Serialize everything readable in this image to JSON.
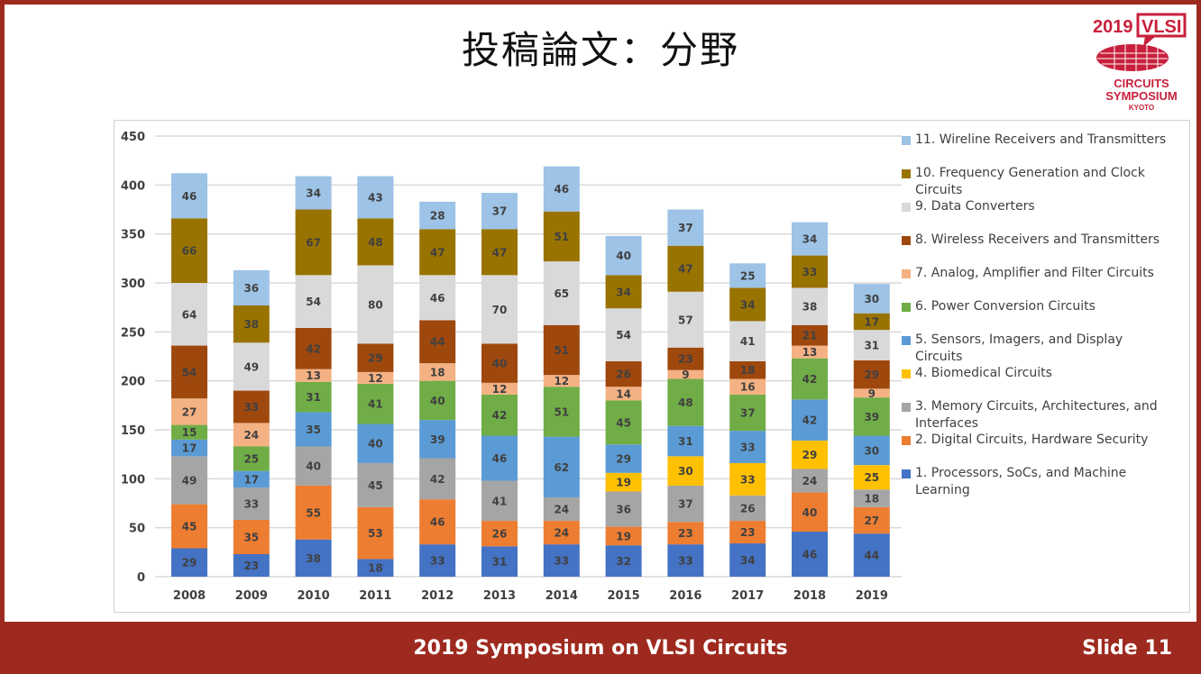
{
  "slide": {
    "title": "投稿論文：分野",
    "footer_title": "2019 Symposium on VLSI Circuits",
    "slide_number": "Slide 11",
    "logo_text": "2019 VLSI CIRCUITS SYMPOSIUM KYOTO",
    "accent_color": "#9e2a1f"
  },
  "chart_data": {
    "type": "bar",
    "stacked": true,
    "categories": [
      "2008",
      "2009",
      "2010",
      "2011",
      "2012",
      "2013",
      "2014",
      "2015",
      "2016",
      "2017",
      "2018",
      "2019"
    ],
    "ylim": [
      0,
      450
    ],
    "yticks": [
      0,
      50,
      100,
      150,
      200,
      250,
      300,
      350,
      400,
      450
    ],
    "grid": true,
    "legend_position": "right",
    "series": [
      {
        "name": "1. Processors, SoCs, and Machine Learning",
        "color": "#4472c4",
        "values": [
          29,
          23,
          38,
          18,
          33,
          31,
          33,
          32,
          33,
          34,
          46,
          44
        ]
      },
      {
        "name": "2. Digital Circuits, Hardware Security",
        "color": "#ed7d31",
        "values": [
          45,
          35,
          55,
          53,
          46,
          26,
          24,
          19,
          23,
          23,
          40,
          27
        ]
      },
      {
        "name": "3. Memory Circuits, Architectures, and Interfaces",
        "color": "#a5a5a5",
        "values": [
          49,
          33,
          40,
          45,
          42,
          41,
          24,
          36,
          37,
          26,
          24,
          18
        ]
      },
      {
        "name": "4. Biomedical Circuits",
        "color": "#ffc000",
        "values": [
          0,
          0,
          0,
          0,
          0,
          0,
          0,
          19,
          30,
          33,
          29,
          25
        ]
      },
      {
        "name": "5. Sensors, Imagers, and Display Circuits",
        "color": "#5b9bd5",
        "values": [
          17,
          17,
          35,
          40,
          39,
          46,
          62,
          29,
          31,
          33,
          42,
          30
        ]
      },
      {
        "name": "6. Power Conversion Circuits",
        "color": "#70ad47",
        "values": [
          15,
          25,
          31,
          41,
          40,
          42,
          51,
          45,
          48,
          37,
          42,
          39
        ]
      },
      {
        "name": "7. Analog, Amplifier and Filter Circuits",
        "color": "#f4b183",
        "values": [
          27,
          24,
          13,
          12,
          18,
          12,
          12,
          14,
          9,
          16,
          13,
          9
        ]
      },
      {
        "name": "8. Wireless Receivers and Transmitters",
        "color": "#9e480e",
        "values": [
          54,
          33,
          42,
          29,
          44,
          40,
          51,
          26,
          23,
          18,
          21,
          29
        ]
      },
      {
        "name": "9. Data Converters",
        "color": "#d9d9d9",
        "values": [
          64,
          49,
          54,
          80,
          46,
          70,
          65,
          54,
          57,
          41,
          38,
          31
        ]
      },
      {
        "name": "10. Frequency Generation and Clock Circuits",
        "color": "#997300",
        "values": [
          66,
          38,
          67,
          48,
          47,
          47,
          51,
          34,
          47,
          34,
          33,
          17
        ]
      },
      {
        "name": "11. Wireline Receivers and Transmitters",
        "color": "#9dc3e6",
        "values": [
          46,
          36,
          34,
          43,
          28,
          37,
          46,
          40,
          37,
          25,
          34,
          30
        ]
      }
    ]
  }
}
